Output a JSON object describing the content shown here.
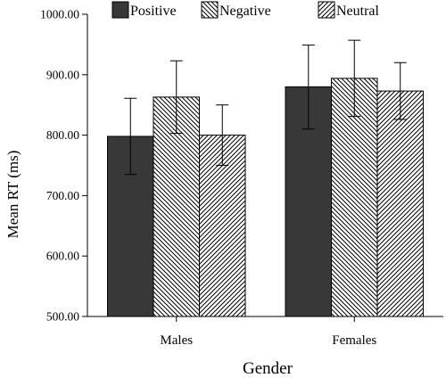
{
  "chart_data": {
    "type": "bar",
    "xlabel": "Gender",
    "ylabel": "Mean RT (ms)",
    "ylim": [
      500,
      1000
    ],
    "yticks": [
      "500.00",
      "600.00",
      "700.00",
      "800.00",
      "900.00",
      "1000.00"
    ],
    "categories": [
      "Males",
      "Females"
    ],
    "series": [
      {
        "name": "Positive",
        "values": [
          798,
          880
        ],
        "error": [
          [
            735,
            861
          ],
          [
            810,
            949
          ]
        ],
        "fill": "solid-dark"
      },
      {
        "name": "Negative",
        "values": [
          863,
          894
        ],
        "error": [
          [
            803,
            923
          ],
          [
            831,
            957
          ]
        ],
        "fill": "back-hatch"
      },
      {
        "name": "Neutral",
        "values": [
          800,
          873
        ],
        "error": [
          [
            750,
            850
          ],
          [
            826,
            920
          ]
        ],
        "fill": "forward-hatch"
      }
    ],
    "grid": false,
    "legend": "top",
    "colors": {
      "positive": "#383838",
      "hatch": "#000000",
      "background": "#ffffff"
    }
  }
}
